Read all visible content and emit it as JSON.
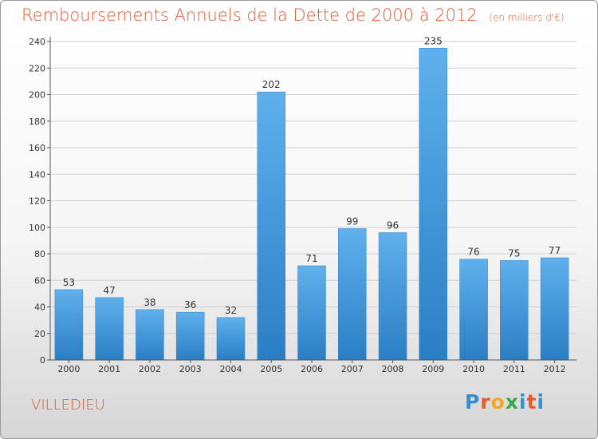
{
  "chart_data": {
    "type": "bar",
    "title": "Remboursements Annuels de la Dette de 2000 à 2012",
    "unit_note": "(en milliers d'€)",
    "categories": [
      "2000",
      "2001",
      "2002",
      "2003",
      "2004",
      "2005",
      "2006",
      "2007",
      "2008",
      "2009",
      "2010",
      "2011",
      "2012"
    ],
    "values": [
      53,
      47,
      38,
      36,
      32,
      202,
      71,
      99,
      96,
      235,
      76,
      75,
      77
    ],
    "ylim": [
      0,
      240
    ],
    "yticks": [
      0,
      20,
      40,
      60,
      80,
      100,
      120,
      140,
      160,
      180,
      200,
      220,
      240
    ],
    "grid": true,
    "bar_color": "#3f97dd"
  },
  "commune": "VILLEDIEU",
  "logo": {
    "text": "Proxiti"
  }
}
